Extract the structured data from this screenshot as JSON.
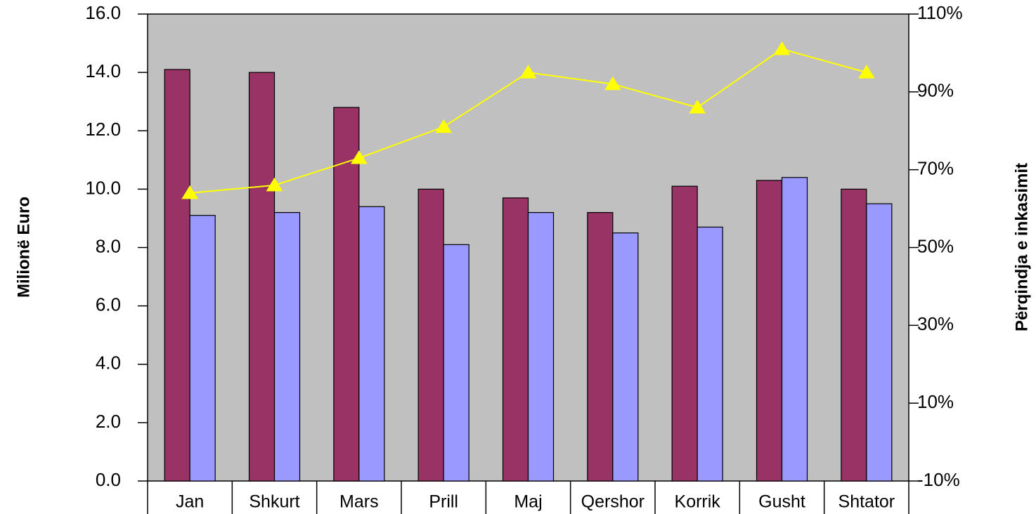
{
  "chart_data": {
    "type": "bar",
    "y_label": "Milionë Euro",
    "y2_label": "Përqindja e inkasimit",
    "categories": [
      "Jan",
      "Shkurt",
      "Mars",
      "Prill",
      "Maj",
      "Qershor",
      "Korrik",
      "Gusht",
      "Shtator"
    ],
    "series": [
      {
        "type": "bar",
        "color": "#993366",
        "values": [
          14.1,
          14.0,
          12.8,
          10.0,
          9.7,
          9.2,
          10.1,
          10.3,
          10.0
        ]
      },
      {
        "type": "bar",
        "color": "#9999ff",
        "values": [
          9.1,
          9.2,
          9.4,
          8.1,
          9.2,
          8.5,
          8.7,
          10.4,
          9.5
        ]
      },
      {
        "type": "line",
        "axis": "y2",
        "color": "#ffff00",
        "values": [
          64,
          66,
          73,
          81,
          95,
          92,
          86,
          101,
          95
        ]
      }
    ],
    "ylim": [
      0,
      16
    ],
    "yticks": [
      {
        "value": 0,
        "label": "0.0"
      },
      {
        "value": 2,
        "label": "2.0"
      },
      {
        "value": 4,
        "label": "4.0"
      },
      {
        "value": 6,
        "label": "6.0"
      },
      {
        "value": 8,
        "label": "8.0"
      },
      {
        "value": 10,
        "label": "10.0"
      },
      {
        "value": 12,
        "label": "12.0"
      },
      {
        "value": 14,
        "label": "14.0"
      },
      {
        "value": 16,
        "label": "16.0"
      }
    ],
    "y2lim": [
      -10,
      110
    ],
    "y2ticks": [
      {
        "value": -10,
        "label": "-10%"
      },
      {
        "value": 10,
        "label": "10%"
      },
      {
        "value": 30,
        "label": "30%"
      },
      {
        "value": 50,
        "label": "50%"
      },
      {
        "value": 70,
        "label": "70%"
      },
      {
        "value": 90,
        "label": "90%"
      },
      {
        "value": 110,
        "label": "110%"
      }
    ],
    "plot_background": "#c0c0c0"
  }
}
